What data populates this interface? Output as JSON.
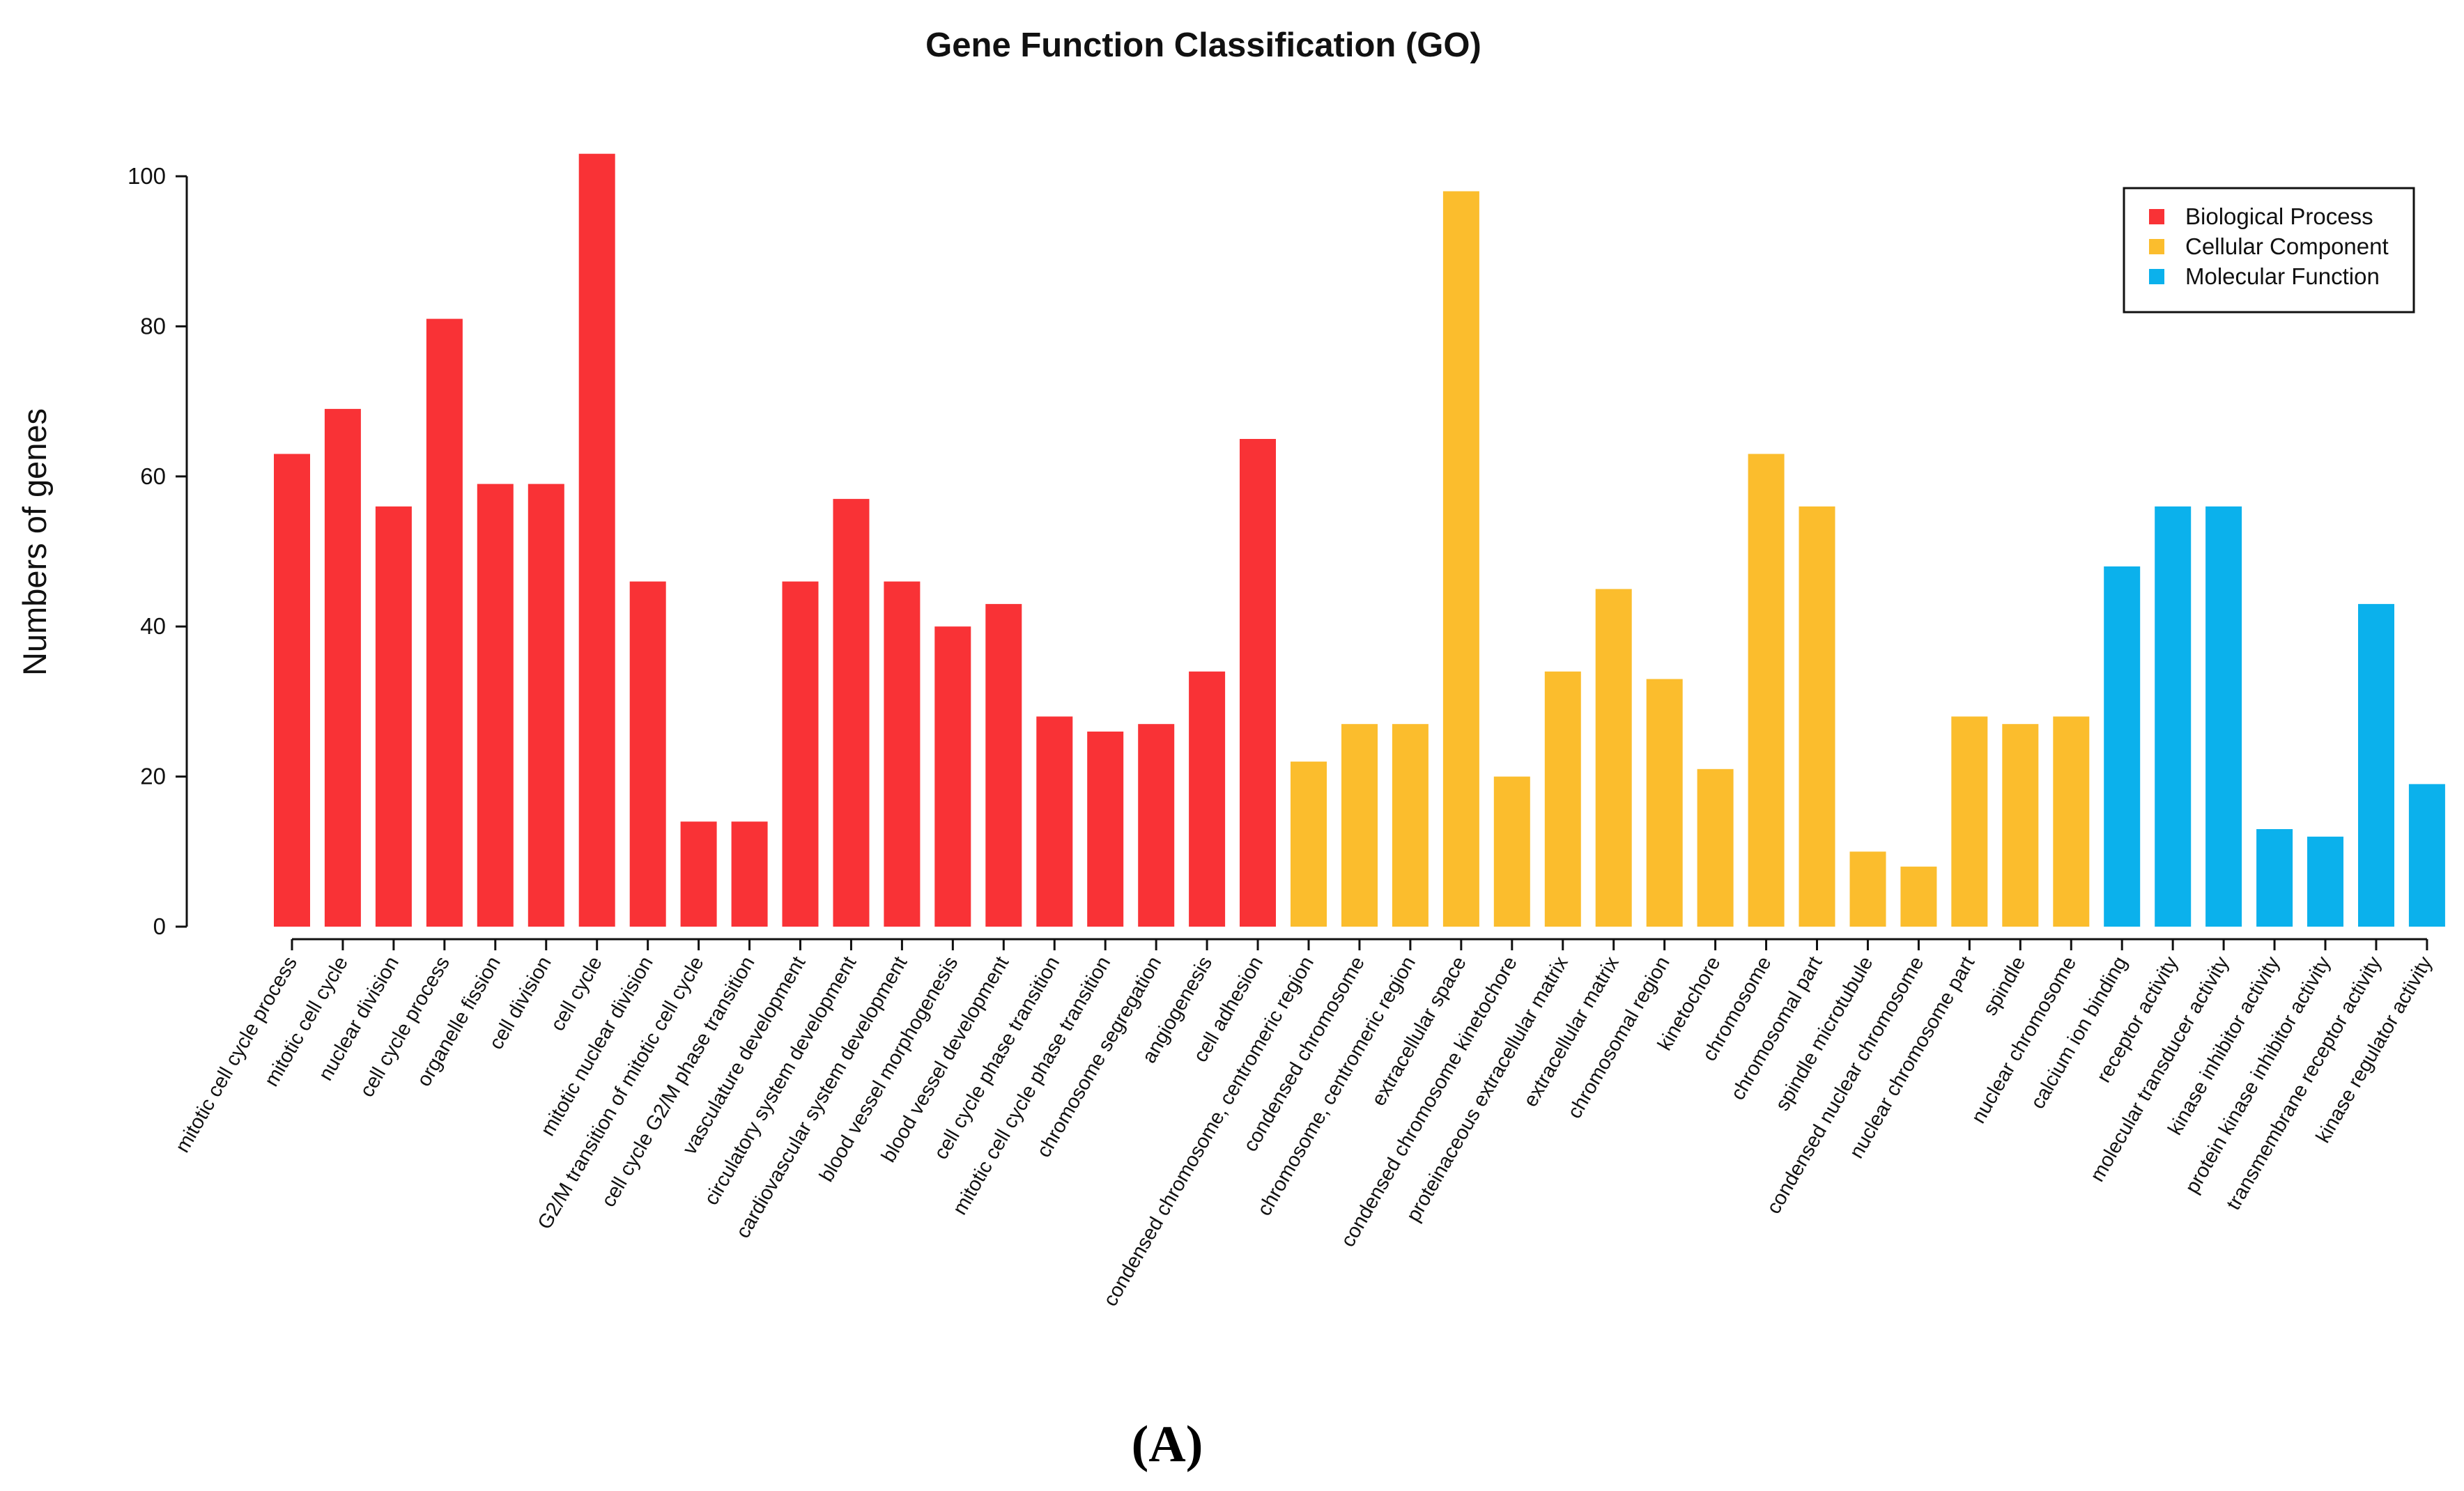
{
  "chart_data": {
    "type": "bar",
    "title": "Gene Function Classification (GO)",
    "xlabel": "",
    "ylabel": "Numbers of genes",
    "ylim": [
      0,
      105
    ],
    "yticks": [
      0,
      20,
      40,
      60,
      80,
      100
    ],
    "legend_position": "top-right",
    "groups": [
      {
        "name": "Biological Process",
        "color": "#f93236"
      },
      {
        "name": "Cellular Component",
        "color": "#fbbd2d"
      },
      {
        "name": "Molecular Function",
        "color": "#0bb1ec"
      }
    ],
    "categories": [
      "mitotic cell cycle process",
      "mitotic cell cycle",
      "nuclear division",
      "cell cycle process",
      "organelle fission",
      "cell division",
      "cell cycle",
      "mitotic nuclear division",
      "G2/M transition of mitotic cell cycle",
      "cell cycle G2/M phase transition",
      "vasculature development",
      "circulatory system development",
      "cardiovascular system development",
      "blood vessel morphogenesis",
      "blood vessel development",
      "cell cycle phase transition",
      "mitotic cell cycle phase transition",
      "chromosome segregation",
      "angiogenesis",
      "cell adhesion",
      "condensed chromosome, centromeric region",
      "condensed chromosome",
      "chromosome, centromeric region",
      "extracellular space",
      "condensed chromosome kinetochore",
      "proteinaceous extracellular matrix",
      "extracellular matrix",
      "chromosomal region",
      "kinetochore",
      "chromosome",
      "chromosomal part",
      "spindle microtubule",
      "condensed nuclear chromosome",
      "nuclear chromosome part",
      "spindle",
      "nuclear chromosome",
      "calcium ion binding",
      "receptor activity",
      "molecular transducer activity",
      "kinase inhibitor activity",
      "protein kinase inhibitor activity",
      "transmembrane receptor activity",
      "kinase regulator activity"
    ],
    "values": [
      63,
      69,
      56,
      81,
      59,
      59,
      103,
      46,
      14,
      14,
      46,
      57,
      46,
      40,
      43,
      28,
      26,
      27,
      34,
      65,
      22,
      27,
      27,
      98,
      20,
      34,
      45,
      33,
      21,
      63,
      56,
      10,
      8,
      28,
      27,
      28,
      48,
      56,
      56,
      13,
      12,
      43,
      19
    ],
    "group_index": [
      0,
      0,
      0,
      0,
      0,
      0,
      0,
      0,
      0,
      0,
      0,
      0,
      0,
      0,
      0,
      0,
      0,
      0,
      0,
      0,
      1,
      1,
      1,
      1,
      1,
      1,
      1,
      1,
      1,
      1,
      1,
      1,
      1,
      1,
      1,
      1,
      2,
      2,
      2,
      2,
      2,
      2,
      2
    ]
  },
  "caption": "(A)"
}
